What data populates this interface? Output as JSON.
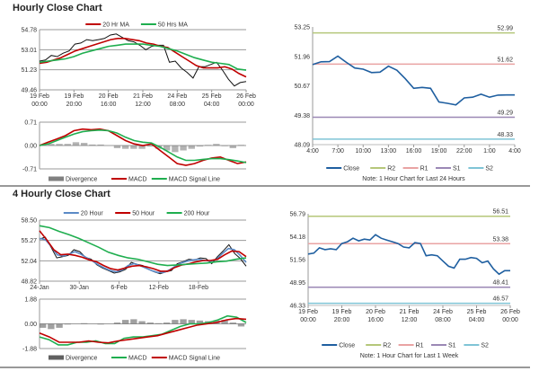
{
  "sections": {
    "hourly_title": "Hourly Close Chart",
    "four_hourly_title": "4 Hourly Close Chart"
  },
  "chart_data": [
    {
      "id": "hourly",
      "type": "line",
      "ylim": [
        49.46,
        54.78
      ],
      "yticks": [
        "54.78",
        "53.01",
        "51.23",
        "49.46"
      ],
      "xticks": [
        "19 Feb\n00:00",
        "19 Feb\n20:00",
        "20 Feb\n16:00",
        "21 Feb\n12:00",
        "24 Feb\n08:00",
        "25 Feb\n04:00",
        "26 Feb\n00:00"
      ],
      "grid": true,
      "legend": "top",
      "series": [
        {
          "name": "",
          "color": "#111111",
          "values": [
            52.0,
            52.1,
            52.5,
            52.4,
            52.7,
            52.9,
            53.5,
            53.6,
            53.9,
            53.8,
            53.9,
            54.0,
            54.3,
            54.4,
            54.1,
            53.8,
            53.7,
            53.4,
            53.0,
            53.3,
            53.4,
            53.4,
            51.9,
            52.0,
            51.4,
            51.0,
            50.5,
            51.5,
            51.5,
            51.7,
            51.9,
            51.2,
            50.4,
            49.8,
            50.1,
            50.2
          ]
        },
        {
          "name": "20 Hr MA",
          "color": "#c00000",
          "values": [
            51.8,
            51.9,
            52.1,
            52.3,
            52.6,
            52.9,
            53.1,
            53.3,
            53.5,
            53.7,
            53.9,
            54.0,
            54.0,
            53.9,
            53.8,
            53.6,
            53.5,
            53.3,
            53.2,
            52.8,
            52.4,
            52.0,
            51.6,
            51.4,
            51.4,
            51.4,
            51.5,
            51.3,
            50.9,
            50.6
          ]
        },
        {
          "name": "50 Hrs MA",
          "color": "#1fae4f",
          "values": [
            51.9,
            52.0,
            52.1,
            52.2,
            52.4,
            52.7,
            52.9,
            53.1,
            53.3,
            53.4,
            53.5,
            53.5,
            53.5,
            53.4,
            53.3,
            53.1,
            52.9,
            52.6,
            52.3,
            52.1,
            51.9,
            51.8,
            51.7,
            51.3,
            51.2
          ]
        }
      ]
    },
    {
      "id": "hourly_macd",
      "type": "line",
      "ylim": [
        -0.71,
        0.71
      ],
      "yticks": [
        "0.71",
        "0.00",
        "-0.71"
      ],
      "grid": true,
      "legend": "bottom",
      "divergence": {
        "name": "Divergence",
        "color": "#808080",
        "values": [
          0,
          0.05,
          0.05,
          0.05,
          0.1,
          0.08,
          0.03,
          0.03,
          0,
          -0.08,
          -0.1,
          -0.1,
          -0.1,
          -0.03,
          -0.1,
          -0.15,
          -0.2,
          -0.15,
          -0.1,
          -0.03,
          0.02,
          0.05,
          -0.02,
          -0.08,
          0.02
        ]
      },
      "series": [
        {
          "name": "MACD",
          "color": "#c00000",
          "values": [
            0,
            0.1,
            0.2,
            0.3,
            0.45,
            0.5,
            0.48,
            0.5,
            0.45,
            0.3,
            0.15,
            0.05,
            0,
            0.05,
            -0.15,
            -0.35,
            -0.55,
            -0.6,
            -0.55,
            -0.45,
            -0.38,
            -0.35,
            -0.45,
            -0.55,
            -0.5
          ]
        },
        {
          "name": "MACD Signal Line",
          "color": "#1fae4f",
          "values": [
            0,
            0.05,
            0.15,
            0.25,
            0.35,
            0.42,
            0.45,
            0.47,
            0.45,
            0.38,
            0.25,
            0.15,
            0.1,
            0.08,
            -0.05,
            -0.2,
            -0.35,
            -0.45,
            -0.45,
            -0.42,
            -0.4,
            -0.4,
            -0.43,
            -0.47,
            -0.52
          ]
        }
      ]
    },
    {
      "id": "pivot_24h",
      "type": "line",
      "ylim": [
        48.09,
        53.25
      ],
      "yticks": [
        "53.25",
        "51.96",
        "50.67",
        "49.38",
        "48.09"
      ],
      "xticks": [
        "4:00",
        "7:00",
        "10:00",
        "13:00",
        "16:00",
        "19:00",
        "22:00",
        "1:00",
        "4:00"
      ],
      "legend": "bottom",
      "note": "Note: 1 Hour Chart for Last 24 Hours",
      "levels": [
        {
          "name": "R2",
          "value": 52.99,
          "label": "52.99",
          "color": "#b5c77a"
        },
        {
          "name": "R1",
          "value": 51.62,
          "label": "51.62",
          "color": "#e9a3a3"
        },
        {
          "name": "S1",
          "value": 49.29,
          "label": "49.29",
          "color": "#9b88b5"
        },
        {
          "name": "S2",
          "value": 48.33,
          "label": "48.33",
          "color": "#7fc4d6"
        }
      ],
      "series": [
        {
          "name": "Close",
          "color": "#1f5fa0",
          "values": [
            51.6,
            51.72,
            51.73,
            51.97,
            51.7,
            51.45,
            51.4,
            51.25,
            51.27,
            51.53,
            51.35,
            50.98,
            50.56,
            50.6,
            50.56,
            49.96,
            49.9,
            49.83,
            50.14,
            50.17,
            50.3,
            50.17,
            50.26,
            50.27,
            50.27
          ]
        }
      ]
    },
    {
      "id": "four_hourly",
      "type": "line",
      "ylim": [
        48.82,
        58.5
      ],
      "yticks": [
        "58.50",
        "55.27",
        "52.04",
        "48.82"
      ],
      "xticks": [
        "24-Jan",
        "30-Jan",
        "6-Feb",
        "12-Feb",
        "18-Feb"
      ],
      "grid": true,
      "legend": "top",
      "series": [
        {
          "name": "",
          "color": "#111111",
          "values": [
            55.5,
            55.8,
            54.2,
            52.5,
            52.7,
            52.9,
            53.8,
            53.5,
            52.6,
            52.3,
            51.4,
            50.9,
            50.5,
            50.1,
            50.3,
            50.7,
            51.8,
            51.5,
            51.3,
            50.7,
            50.3,
            50.0,
            50.3,
            50.5,
            51.6,
            51.9,
            52.3,
            52.2,
            52.5,
            52.4,
            51.6,
            52.7,
            53.6,
            54.6,
            53.2,
            52.4,
            51.2
          ]
        },
        {
          "name": "20 Hour",
          "color": "#5b8ac6",
          "values": [
            55.6,
            55.4,
            54.3,
            53.0,
            52.8,
            53.1,
            53.5,
            53.1,
            52.5,
            52.0,
            51.4,
            50.9,
            50.5,
            50.3,
            50.6,
            51.3,
            51.6,
            51.3,
            50.9,
            50.5,
            50.2,
            50.2,
            50.6,
            51.2,
            51.7,
            52.0,
            52.2,
            52.3,
            52.1,
            52.0,
            52.3,
            53.2,
            54.0,
            53.8,
            52.9,
            51.8
          ]
        },
        {
          "name": "50 Hour",
          "color": "#c00000",
          "values": [
            56.8,
            55.4,
            53.8,
            53.0,
            53.1,
            52.9,
            52.6,
            52.2,
            51.9,
            51.3,
            50.8,
            50.6,
            50.9,
            51.2,
            51.3,
            51.1,
            50.8,
            50.4,
            50.4,
            51.0,
            51.4,
            51.6,
            51.9,
            52.1,
            52.1,
            52.3,
            53.0,
            53.6,
            53.5,
            52.7
          ]
        },
        {
          "name": "200 Hour",
          "color": "#1fae4f",
          "values": [
            57.6,
            57.3,
            56.7,
            56.2,
            55.6,
            54.9,
            54.2,
            53.4,
            52.9,
            52.5,
            52.3,
            51.9,
            51.5,
            51.3,
            51.4,
            51.5,
            51.6,
            51.7,
            51.9,
            52.0,
            52.3,
            52.5
          ]
        }
      ]
    },
    {
      "id": "four_hourly_macd",
      "type": "line",
      "ylim": [
        -1.88,
        1.88
      ],
      "yticks": [
        "1.88",
        "0.00",
        "-1.88"
      ],
      "grid": true,
      "legend": "bottom",
      "divergence": {
        "name": "Divergence",
        "color": "#606060",
        "values": [
          -0.3,
          -0.4,
          -0.3,
          -0.05,
          0,
          0.05,
          0,
          -0.05,
          0,
          0.1,
          0.3,
          0.35,
          0.2,
          0.1,
          0.05,
          0.1,
          0.3,
          0.35,
          0.3,
          0.25,
          0.2,
          0.25,
          0.3,
          0.1,
          -0.2
        ]
      },
      "series": [
        {
          "name": "MACD",
          "color": "#1fae4f",
          "values": [
            -1.0,
            -1.2,
            -1.6,
            -1.6,
            -1.4,
            -1.4,
            -1.3,
            -1.5,
            -1.5,
            -1.1,
            -1.0,
            -1.0,
            -0.9,
            -0.8,
            -0.5,
            -0.2,
            0.0,
            0.0,
            0.1,
            0.3,
            0.6,
            0.5,
            0.1
          ]
        },
        {
          "name": "MACD Signal Line",
          "color": "#c00000",
          "values": [
            -0.7,
            -1.0,
            -1.4,
            -1.4,
            -1.4,
            -1.3,
            -1.4,
            -1.45,
            -1.3,
            -1.2,
            -1.1,
            -1.0,
            -0.9,
            -0.7,
            -0.5,
            -0.3,
            -0.1,
            0.0,
            0.1,
            0.3,
            0.4,
            0.35
          ]
        }
      ]
    },
    {
      "id": "pivot_week",
      "type": "line",
      "ylim": [
        46.33,
        56.79
      ],
      "yticks": [
        "56.79",
        "54.18",
        "51.56",
        "48.95",
        "46.33"
      ],
      "xticks": [
        "19 Feb\n00:00",
        "19 Feb\n20:00",
        "20 Feb\n16:00",
        "21 Feb\n12:00",
        "24 Feb\n08:00",
        "25 Feb\n04:00",
        "26 Feb\n00:00"
      ],
      "legend": "bottom",
      "note": "Note: 1 Hour Chart for Last 1 Week",
      "levels": [
        {
          "name": "R2",
          "value": 56.51,
          "label": "56.51",
          "color": "#b5c77a"
        },
        {
          "name": "R1",
          "value": 53.38,
          "label": "53.38",
          "color": "#e9a3a3"
        },
        {
          "name": "S1",
          "value": 48.41,
          "label": "48.41",
          "color": "#9b88b5"
        },
        {
          "name": "S2",
          "value": 46.57,
          "label": "46.57",
          "color": "#7fc4d6"
        }
      ],
      "series": [
        {
          "name": "Close",
          "color": "#1f5fa0",
          "values": [
            52.2,
            52.3,
            52.9,
            52.7,
            52.8,
            52.7,
            53.4,
            53.6,
            54.0,
            53.7,
            53.9,
            53.8,
            54.4,
            54.0,
            53.8,
            53.6,
            53.4,
            53.0,
            52.9,
            53.5,
            53.4,
            52.0,
            52.1,
            52.0,
            51.4,
            50.8,
            50.6,
            51.6,
            51.6,
            51.8,
            51.7,
            51.2,
            51.4,
            50.5,
            49.9,
            50.3,
            50.3
          ]
        }
      ]
    }
  ]
}
